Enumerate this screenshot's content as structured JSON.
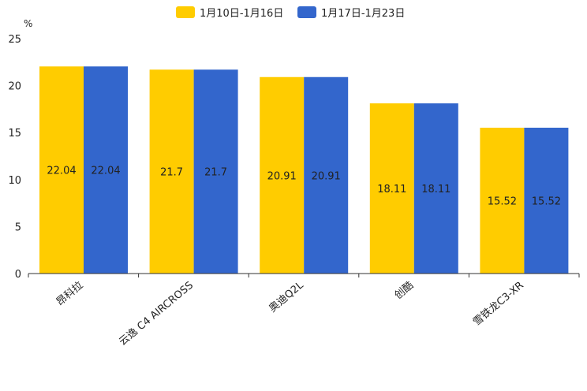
{
  "chart_data": {
    "type": "bar",
    "title": "",
    "xlabel": "",
    "ylabel": "%",
    "ylim": [
      0,
      25
    ],
    "yticks": [
      0,
      5,
      10,
      15,
      20,
      25
    ],
    "legend_position": "top-center",
    "categories": [
      "昂科拉",
      "云逸 C4 AIRCROSS",
      "奥迪Q2L",
      "创酷",
      "雪铁龙C3-XR"
    ],
    "series": [
      {
        "name": "1月10日-1月16日",
        "color": "#ffcc00",
        "values": [
          22.04,
          21.7,
          20.91,
          18.11,
          15.52
        ],
        "labels": [
          "22.04",
          "21.7",
          "20.91",
          "18.11",
          "15.52"
        ]
      },
      {
        "name": "1月17日-1月23日",
        "color": "#3366cc",
        "values": [
          22.04,
          21.7,
          20.91,
          18.11,
          15.52
        ],
        "labels": [
          "22.04",
          "21.7",
          "20.91",
          "18.11",
          "15.52"
        ]
      }
    ]
  }
}
